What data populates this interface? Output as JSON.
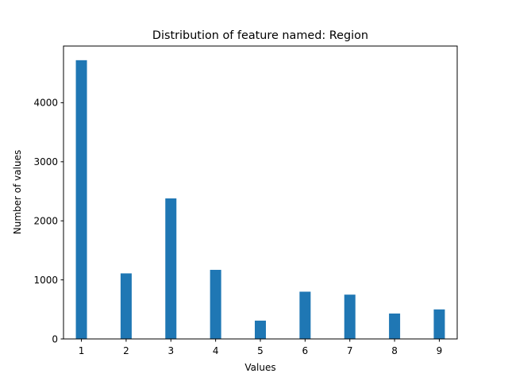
{
  "chart_data": {
    "type": "bar",
    "title": "Distribution of feature named: Region",
    "xlabel": "Values",
    "ylabel": "Number of values",
    "x": [
      1,
      2,
      3,
      4,
      5,
      6,
      7,
      8,
      9
    ],
    "values": [
      4720,
      1110,
      2380,
      1170,
      310,
      800,
      750,
      430,
      500
    ],
    "xlim": [
      0.6,
      9.4
    ],
    "ylim": [
      0,
      4960
    ],
    "xticks": [
      1,
      2,
      3,
      4,
      5,
      6,
      7,
      8,
      9
    ],
    "yticks": [
      0,
      1000,
      2000,
      3000,
      4000
    ],
    "bar_color": "#1f77b4",
    "grid": false,
    "legend": "none"
  }
}
